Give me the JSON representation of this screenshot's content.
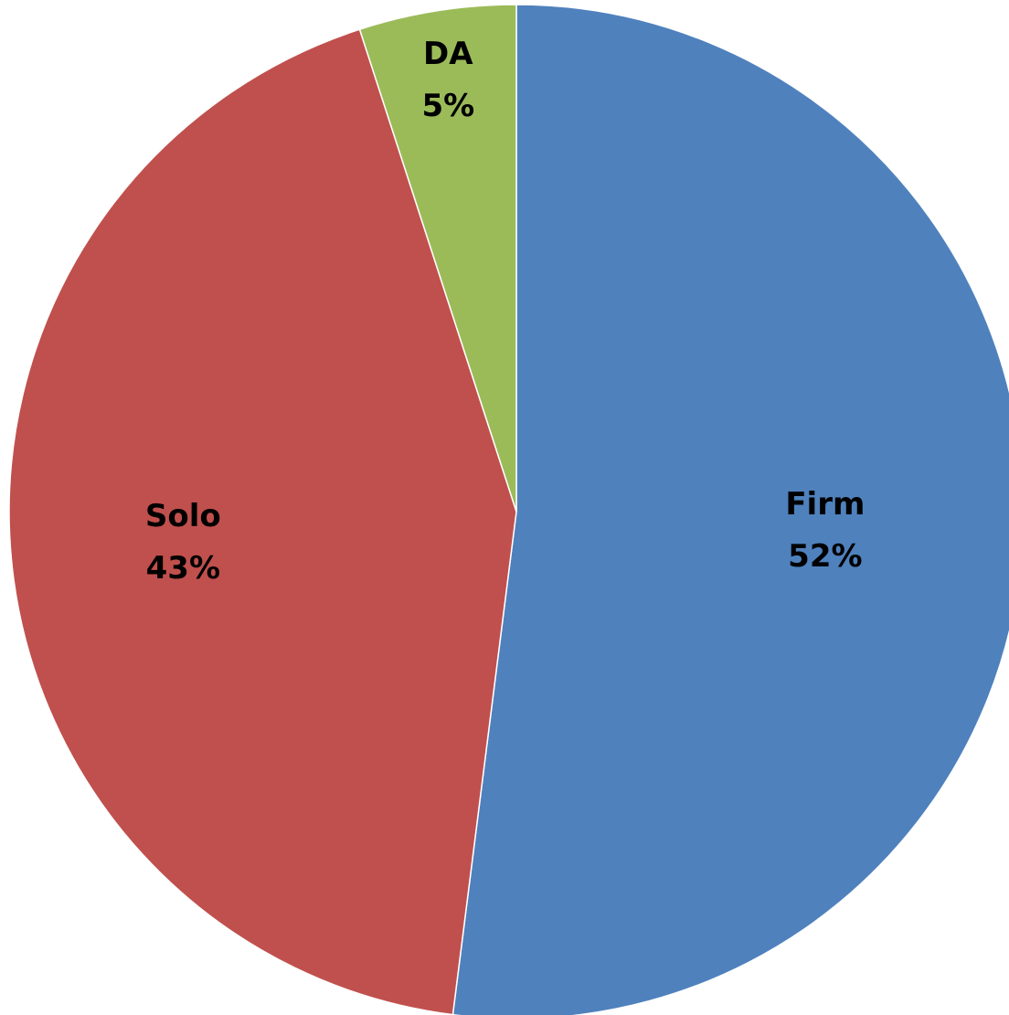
{
  "chart_data": {
    "type": "pie",
    "categories": [
      "Firm",
      "Solo",
      "DA"
    ],
    "values": [
      52,
      43,
      5
    ],
    "value_labels": [
      "52%",
      "43%",
      "5%"
    ],
    "colors": [
      "#4f81bd",
      "#c0504d",
      "#9bbb59"
    ]
  }
}
